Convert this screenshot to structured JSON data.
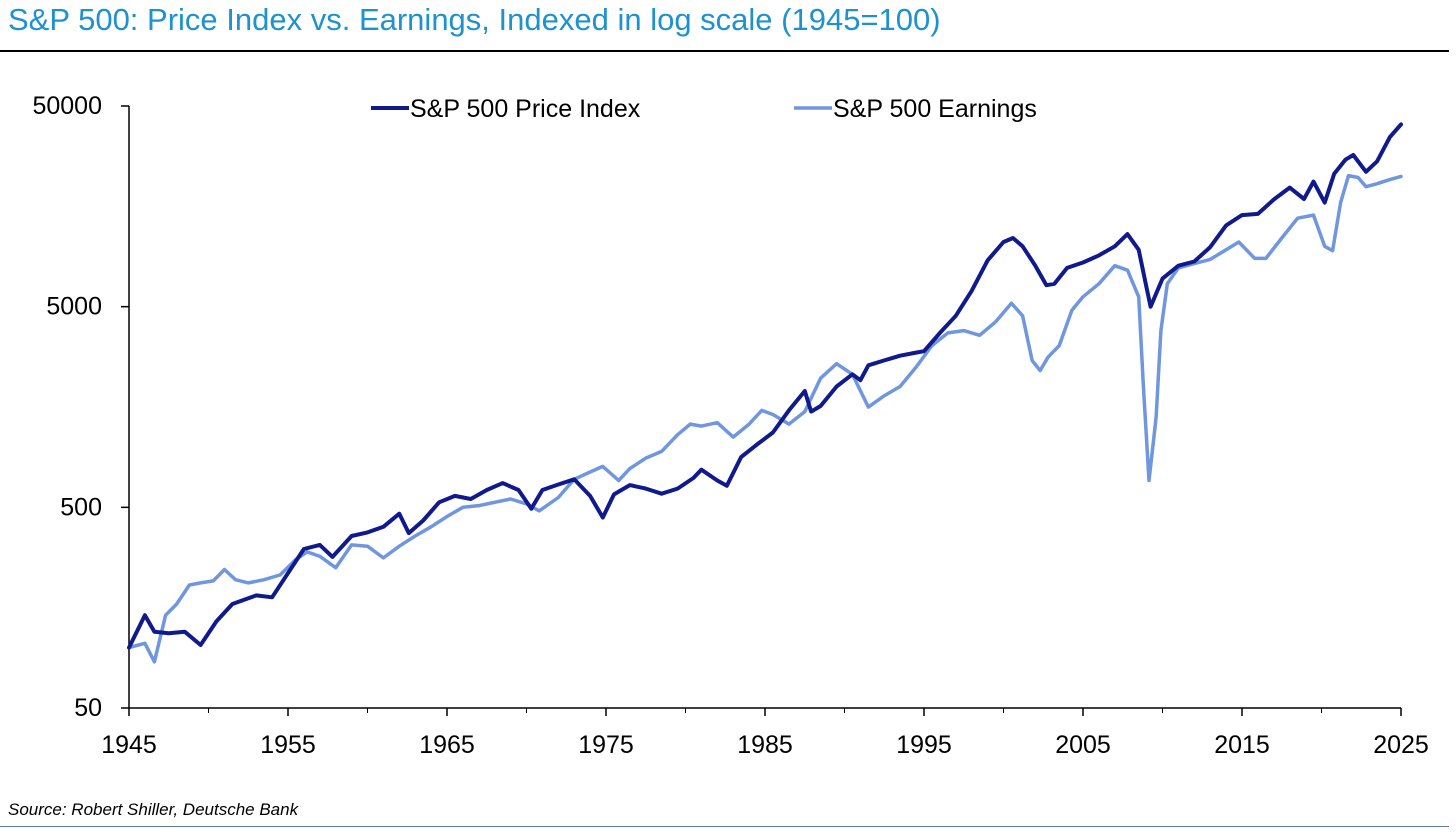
{
  "title": "S&P 500: Price Index vs. Earnings, Indexed in log scale (1945=100)",
  "source": "Source: Robert Shiller, Deutsche Bank",
  "chart_data": {
    "type": "line",
    "title": "S&P 500: Price Index vs. Earnings, Indexed in log scale (1945=100)",
    "xlabel": "",
    "ylabel": "",
    "y_scale": "log",
    "ylim": [
      50,
      50000
    ],
    "xlim": [
      1945,
      2025
    ],
    "grid": false,
    "legend_position": "top-center",
    "y_ticks": [
      50,
      500,
      5000,
      50000
    ],
    "y_tick_labels": [
      "50",
      "500",
      "5000",
      "50000"
    ],
    "x_ticks": [
      1945,
      1955,
      1965,
      1975,
      1985,
      1995,
      2005,
      2015,
      2025
    ],
    "x_tick_labels": [
      "1945",
      "1955",
      "1965",
      "1975",
      "1985",
      "1995",
      "2005",
      "2015",
      "2025"
    ],
    "series": [
      {
        "name": "S&P 500 Price Index",
        "color": "#101a8c",
        "points": [
          [
            1945.0,
            100
          ],
          [
            1946.0,
            145
          ],
          [
            1946.6,
            120
          ],
          [
            1947.5,
            118
          ],
          [
            1948.5,
            120
          ],
          [
            1949.5,
            103
          ],
          [
            1950.5,
            135
          ],
          [
            1951.5,
            165
          ],
          [
            1953.0,
            182
          ],
          [
            1954.0,
            178
          ],
          [
            1955.0,
            235
          ],
          [
            1956.0,
            310
          ],
          [
            1957.0,
            325
          ],
          [
            1957.8,
            283
          ],
          [
            1959.0,
            360
          ],
          [
            1960.0,
            375
          ],
          [
            1961.0,
            400
          ],
          [
            1962.0,
            465
          ],
          [
            1962.6,
            372
          ],
          [
            1963.5,
            430
          ],
          [
            1964.5,
            530
          ],
          [
            1965.5,
            570
          ],
          [
            1966.5,
            550
          ],
          [
            1967.5,
            610
          ],
          [
            1968.5,
            660
          ],
          [
            1969.5,
            610
          ],
          [
            1970.3,
            492
          ],
          [
            1971.0,
            610
          ],
          [
            1972.0,
            650
          ],
          [
            1973.0,
            690
          ],
          [
            1974.0,
            570
          ],
          [
            1974.8,
            445
          ],
          [
            1975.5,
            580
          ],
          [
            1976.5,
            645
          ],
          [
            1977.5,
            620
          ],
          [
            1978.5,
            585
          ],
          [
            1979.5,
            620
          ],
          [
            1980.5,
            700
          ],
          [
            1981.0,
            770
          ],
          [
            1982.0,
            680
          ],
          [
            1982.6,
            640
          ],
          [
            1983.5,
            890
          ],
          [
            1984.5,
            1030
          ],
          [
            1985.5,
            1180
          ],
          [
            1986.5,
            1520
          ],
          [
            1987.5,
            1900
          ],
          [
            1987.9,
            1500
          ],
          [
            1988.5,
            1600
          ],
          [
            1989.5,
            2000
          ],
          [
            1990.5,
            2300
          ],
          [
            1991.0,
            2150
          ],
          [
            1991.5,
            2550
          ],
          [
            1992.5,
            2700
          ],
          [
            1993.5,
            2850
          ],
          [
            1994.5,
            2950
          ],
          [
            1995.0,
            3000
          ],
          [
            1996.0,
            3700
          ],
          [
            1997.0,
            4500
          ],
          [
            1998.0,
            6000
          ],
          [
            1999.0,
            8500
          ],
          [
            2000.0,
            10500
          ],
          [
            2000.6,
            11000
          ],
          [
            2001.2,
            10000
          ],
          [
            2002.0,
            8000
          ],
          [
            2002.7,
            6400
          ],
          [
            2003.2,
            6500
          ],
          [
            2004.0,
            7800
          ],
          [
            2005.0,
            8300
          ],
          [
            2006.0,
            9000
          ],
          [
            2007.0,
            10000
          ],
          [
            2007.8,
            11500
          ],
          [
            2008.5,
            9600
          ],
          [
            2009.0,
            6200
          ],
          [
            2009.25,
            5000
          ],
          [
            2010.0,
            6900
          ],
          [
            2011.0,
            8000
          ],
          [
            2012.0,
            8400
          ],
          [
            2013.0,
            9900
          ],
          [
            2014.0,
            12700
          ],
          [
            2015.0,
            14300
          ],
          [
            2016.0,
            14500
          ],
          [
            2017.0,
            17100
          ],
          [
            2018.0,
            19600
          ],
          [
            2018.9,
            17200
          ],
          [
            2019.5,
            21000
          ],
          [
            2020.2,
            16500
          ],
          [
            2020.8,
            23000
          ],
          [
            2021.5,
            27000
          ],
          [
            2022.0,
            28500
          ],
          [
            2022.8,
            23500
          ],
          [
            2023.5,
            26500
          ],
          [
            2024.3,
            35000
          ],
          [
            2025.0,
            40500
          ]
        ]
      },
      {
        "name": "S&P 500 Earnings",
        "color": "#6f96df",
        "points": [
          [
            1945.0,
            100
          ],
          [
            1946.0,
            105
          ],
          [
            1946.6,
            85
          ],
          [
            1947.3,
            145
          ],
          [
            1948.0,
            165
          ],
          [
            1948.8,
            205
          ],
          [
            1949.5,
            210
          ],
          [
            1950.3,
            215
          ],
          [
            1951.0,
            245
          ],
          [
            1951.7,
            218
          ],
          [
            1952.5,
            210
          ],
          [
            1953.5,
            218
          ],
          [
            1954.5,
            230
          ],
          [
            1955.5,
            275
          ],
          [
            1956.2,
            300
          ],
          [
            1957.0,
            285
          ],
          [
            1958.0,
            250
          ],
          [
            1959.0,
            325
          ],
          [
            1960.0,
            320
          ],
          [
            1961.0,
            280
          ],
          [
            1962.0,
            320
          ],
          [
            1963.0,
            360
          ],
          [
            1964.0,
            400
          ],
          [
            1965.0,
            450
          ],
          [
            1966.0,
            500
          ],
          [
            1967.0,
            510
          ],
          [
            1968.0,
            530
          ],
          [
            1969.0,
            550
          ],
          [
            1970.0,
            520
          ],
          [
            1970.8,
            480
          ],
          [
            1972.0,
            560
          ],
          [
            1973.0,
            690
          ],
          [
            1974.0,
            750
          ],
          [
            1974.8,
            800
          ],
          [
            1975.8,
            680
          ],
          [
            1976.5,
            780
          ],
          [
            1977.5,
            880
          ],
          [
            1978.5,
            950
          ],
          [
            1979.5,
            1150
          ],
          [
            1980.3,
            1300
          ],
          [
            1981.0,
            1270
          ],
          [
            1982.0,
            1320
          ],
          [
            1983.0,
            1120
          ],
          [
            1984.0,
            1300
          ],
          [
            1984.8,
            1520
          ],
          [
            1985.5,
            1450
          ],
          [
            1986.5,
            1300
          ],
          [
            1987.5,
            1500
          ],
          [
            1988.5,
            2200
          ],
          [
            1989.5,
            2600
          ],
          [
            1990.5,
            2300
          ],
          [
            1991.5,
            1580
          ],
          [
            1992.5,
            1800
          ],
          [
            1993.5,
            2000
          ],
          [
            1994.5,
            2500
          ],
          [
            1995.5,
            3200
          ],
          [
            1996.5,
            3700
          ],
          [
            1997.5,
            3800
          ],
          [
            1998.5,
            3600
          ],
          [
            1999.5,
            4200
          ],
          [
            2000.5,
            5200
          ],
          [
            2001.2,
            4500
          ],
          [
            2001.8,
            2700
          ],
          [
            2002.3,
            2400
          ],
          [
            2002.8,
            2800
          ],
          [
            2003.5,
            3200
          ],
          [
            2004.3,
            4800
          ],
          [
            2005.0,
            5600
          ],
          [
            2006.0,
            6500
          ],
          [
            2007.0,
            8000
          ],
          [
            2007.8,
            7600
          ],
          [
            2008.5,
            5600
          ],
          [
            2008.8,
            2000
          ],
          [
            2009.15,
            680
          ],
          [
            2009.6,
            1400
          ],
          [
            2009.9,
            3800
          ],
          [
            2010.3,
            6500
          ],
          [
            2011.0,
            7800
          ],
          [
            2012.0,
            8200
          ],
          [
            2013.0,
            8600
          ],
          [
            2014.0,
            9600
          ],
          [
            2014.8,
            10500
          ],
          [
            2015.8,
            8700
          ],
          [
            2016.5,
            8700
          ],
          [
            2017.5,
            11000
          ],
          [
            2018.5,
            13800
          ],
          [
            2019.5,
            14300
          ],
          [
            2020.2,
            10000
          ],
          [
            2020.7,
            9500
          ],
          [
            2021.2,
            16500
          ],
          [
            2021.7,
            22500
          ],
          [
            2022.3,
            22000
          ],
          [
            2022.8,
            19800
          ],
          [
            2023.5,
            20500
          ],
          [
            2024.3,
            21500
          ],
          [
            2025.0,
            22300
          ]
        ]
      }
    ]
  }
}
